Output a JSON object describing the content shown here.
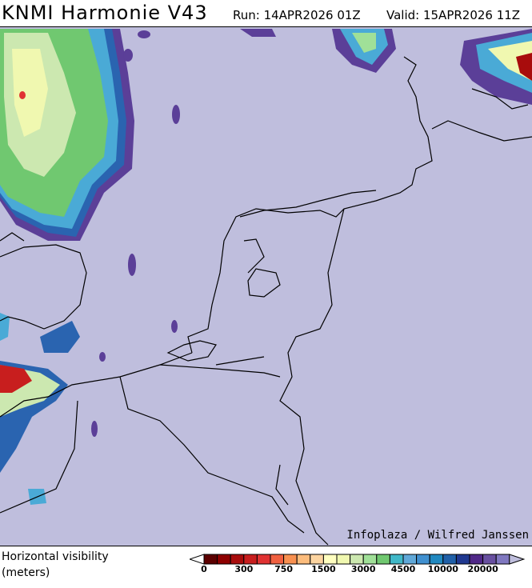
{
  "header": {
    "title": "KNMI Harmonie V43",
    "run": "Run: 14APR2026 01Z",
    "valid": "Valid: 15APR2026 11Z"
  },
  "map": {
    "background_color": "#bfbedd",
    "credit": "Infoplaza / Wilfred Janssen"
  },
  "legend": {
    "label_line1": "Horizontal visibility",
    "label_line2": "(meters)",
    "colors": [
      "#5c0000",
      "#8e0000",
      "#a80c0c",
      "#c81e1e",
      "#e03232",
      "#f06040",
      "#f89050",
      "#fcbc7c",
      "#fcd4a0",
      "#ffffc0",
      "#f0f8b0",
      "#cce8b0",
      "#a0e098",
      "#70c870",
      "#40b8c8",
      "#60a8d8",
      "#4090d0",
      "#2088c0",
      "#2060a8",
      "#203890",
      "#502888",
      "#6850a0",
      "#8078c0"
    ],
    "over_color": "#bfbedd",
    "under_color": "#ffffff",
    "ticks": [
      "0",
      "300",
      "750",
      "1500",
      "3000",
      "4500",
      "10000",
      "20000"
    ]
  }
}
